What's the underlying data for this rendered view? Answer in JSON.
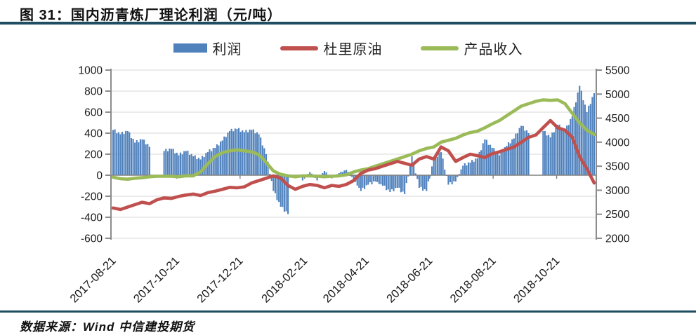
{
  "figure": {
    "title": "图 31：国内沥青炼厂理论利润（元/吨）",
    "source": "数据来源：Wind 中信建投期货"
  },
  "chart_data": {
    "type": "bar+line combo, dual axis",
    "legend": [
      "利润",
      "杜里原油",
      "产品收入"
    ],
    "colors": {
      "bar": "#4F81BD",
      "duri": "#C0504D",
      "revenue": "#9BBB59",
      "grid": "#d9d9d9",
      "axis": "#8c8c8c",
      "zero_axis": "#808080",
      "tick_text": "#1a1a1a"
    },
    "left_axis": {
      "min": -600,
      "max": 1000,
      "ticks": [
        1000,
        800,
        600,
        400,
        200,
        0,
        -200,
        -400,
        -600
      ]
    },
    "right_axis": {
      "min": 2000,
      "max": 5500,
      "ticks": [
        5500,
        5000,
        4500,
        4000,
        3500,
        3000,
        2500,
        2000
      ]
    },
    "x_ticks": [
      {
        "label": "2017-08-21",
        "pos": 0.0
      },
      {
        "label": "2017-10-21",
        "pos": 0.132
      },
      {
        "label": "2017-12-21",
        "pos": 0.264
      },
      {
        "label": "2018-02-21",
        "pos": 0.398
      },
      {
        "label": "2018-04-21",
        "pos": 0.526
      },
      {
        "label": "2018-06-21",
        "pos": 0.658
      },
      {
        "label": "2018-08-21",
        "pos": 0.79
      },
      {
        "label": "2018-10-21",
        "pos": 0.922
      }
    ],
    "categories": [
      "2017-08-21",
      "2017-08-28",
      "2017-09-04",
      "2017-09-11",
      "2017-09-18",
      "2017-09-25",
      "2017-10-02",
      "2017-10-09",
      "2017-10-16",
      "2017-10-23",
      "2017-10-30",
      "2017-11-06",
      "2017-11-13",
      "2017-11-20",
      "2017-11-27",
      "2017-12-04",
      "2017-12-11",
      "2017-12-18",
      "2017-12-25",
      "2018-01-01",
      "2018-01-08",
      "2018-01-15",
      "2018-01-22",
      "2018-01-29",
      "2018-02-05",
      "2018-02-12",
      "2018-02-19",
      "2018-02-26",
      "2018-03-05",
      "2018-03-12",
      "2018-03-19",
      "2018-03-26",
      "2018-04-02",
      "2018-04-09",
      "2018-04-16",
      "2018-04-23",
      "2018-04-30",
      "2018-05-07",
      "2018-05-14",
      "2018-05-21",
      "2018-05-28",
      "2018-06-04",
      "2018-06-11",
      "2018-06-18",
      "2018-06-25",
      "2018-07-02",
      "2018-07-09",
      "2018-07-16",
      "2018-07-23",
      "2018-07-30",
      "2018-08-06",
      "2018-08-13",
      "2018-08-20",
      "2018-08-27",
      "2018-09-03",
      "2018-09-10",
      "2018-09-17",
      "2018-09-24",
      "2018-10-01",
      "2018-10-08",
      "2018-10-15",
      "2018-10-22",
      "2018-10-29",
      "2018-11-05",
      "2018-11-12",
      "2018-11-19",
      "2018-11-26"
    ],
    "series": [
      {
        "name": "利润",
        "type": "bar",
        "axis": "left",
        "values": [
          430,
          390,
          420,
          310,
          340,
          270,
          null,
          230,
          250,
          190,
          230,
          180,
          150,
          220,
          260,
          330,
          420,
          440,
          410,
          430,
          390,
          200,
          -150,
          -300,
          -370,
          null,
          -50,
          30,
          -50,
          40,
          -30,
          20,
          50,
          -40,
          -150,
          -90,
          -60,
          -100,
          -160,
          -120,
          -180,
          180,
          -120,
          -150,
          150,
          220,
          -90,
          -60,
          90,
          120,
          160,
          340,
          260,
          190,
          280,
          350,
          470,
          400,
          null,
          420,
          360,
          480,
          420,
          560,
          850,
          600,
          780
        ]
      },
      {
        "name": "杜里原油",
        "type": "line",
        "axis": "right",
        "values": [
          2630,
          2600,
          2650,
          2700,
          2750,
          2720,
          2800,
          2840,
          2830,
          2870,
          2900,
          2920,
          2890,
          2950,
          2980,
          3020,
          3060,
          3050,
          3070,
          3150,
          3200,
          3250,
          3300,
          3250,
          3100,
          3020,
          3080,
          3120,
          3100,
          3050,
          3100,
          3080,
          3120,
          3200,
          3350,
          3420,
          3450,
          3500,
          3550,
          3600,
          3560,
          3520,
          3650,
          3700,
          3650,
          3900,
          3820,
          3600,
          3680,
          3750,
          3720,
          3680,
          3760,
          3800,
          3850,
          3900,
          4000,
          4100,
          4150,
          4300,
          4450,
          4300,
          4250,
          4100,
          3700,
          3450,
          3150
        ]
      },
      {
        "name": "产品收入",
        "type": "line",
        "axis": "right",
        "values": [
          3270,
          3240,
          3230,
          3250,
          3260,
          3280,
          3290,
          3290,
          3290,
          3280,
          3300,
          3300,
          3380,
          3550,
          3700,
          3780,
          3820,
          3840,
          3820,
          3800,
          3740,
          3580,
          3400,
          3330,
          3300,
          3280,
          3300,
          3300,
          3290,
          3280,
          3290,
          3300,
          3320,
          3380,
          3420,
          3450,
          3500,
          3550,
          3600,
          3650,
          3700,
          3750,
          3820,
          3870,
          3900,
          4000,
          4040,
          4080,
          4150,
          4200,
          4230,
          4300,
          4380,
          4450,
          4550,
          4650,
          4750,
          4800,
          4850,
          4880,
          4870,
          4880,
          4800,
          4600,
          4400,
          4250,
          4160
        ]
      }
    ]
  }
}
